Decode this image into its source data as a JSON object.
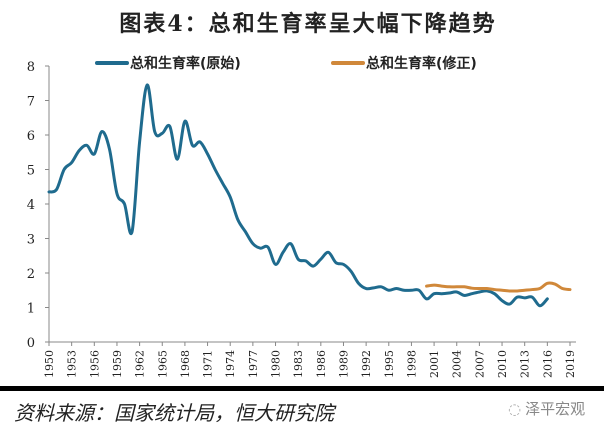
{
  "title": "图表4：总和生育率呈大幅下降趋势",
  "source": "资料来源：国家统计局，恒大研究院",
  "watermark": "泽平宏观",
  "colors": {
    "original": "#1f6b8e",
    "revised": "#d0883a",
    "axis": "#888888"
  },
  "chart_data": {
    "type": "line",
    "title": "图表4：总和生育率呈大幅下降趋势",
    "xlabel": "",
    "ylabel": "",
    "xlim": [
      1950,
      2019
    ],
    "ylim": [
      0,
      8
    ],
    "yticks": [
      0,
      1,
      2,
      3,
      4,
      5,
      6,
      7,
      8
    ],
    "xticks": [
      1950,
      1953,
      1956,
      1959,
      1962,
      1965,
      1968,
      1971,
      1974,
      1977,
      1980,
      1983,
      1986,
      1989,
      1992,
      1995,
      1998,
      2001,
      2004,
      2007,
      2010,
      2013,
      2016,
      2019
    ],
    "grid": false,
    "legend_position": "top",
    "series": [
      {
        "name": "总和生育率(原始)",
        "x_start": 1950,
        "values": [
          4.35,
          4.42,
          5.0,
          5.2,
          5.55,
          5.7,
          5.45,
          6.1,
          5.6,
          4.3,
          4.0,
          3.2,
          5.8,
          7.45,
          6.1,
          6.05,
          6.25,
          5.3,
          6.4,
          5.7,
          5.8,
          5.45,
          5.0,
          4.6,
          4.2,
          3.55,
          3.2,
          2.85,
          2.72,
          2.75,
          2.25,
          2.6,
          2.85,
          2.4,
          2.35,
          2.2,
          2.4,
          2.6,
          2.3,
          2.25,
          2.05,
          1.7,
          1.55,
          1.57,
          1.6,
          1.5,
          1.55,
          1.5,
          1.5,
          1.5,
          1.25,
          1.4,
          1.4,
          1.42,
          1.45,
          1.35,
          1.4,
          1.45,
          1.48,
          1.4,
          1.2,
          1.1,
          1.3,
          1.28,
          1.3,
          1.05,
          1.25
        ]
      },
      {
        "name": "总和生育率(修正)",
        "x_start": 2000,
        "values": [
          1.62,
          1.65,
          1.62,
          1.6,
          1.6,
          1.6,
          1.56,
          1.55,
          1.55,
          1.52,
          1.5,
          1.48,
          1.48,
          1.5,
          1.52,
          1.55,
          1.7,
          1.68,
          1.55,
          1.52
        ]
      }
    ]
  }
}
